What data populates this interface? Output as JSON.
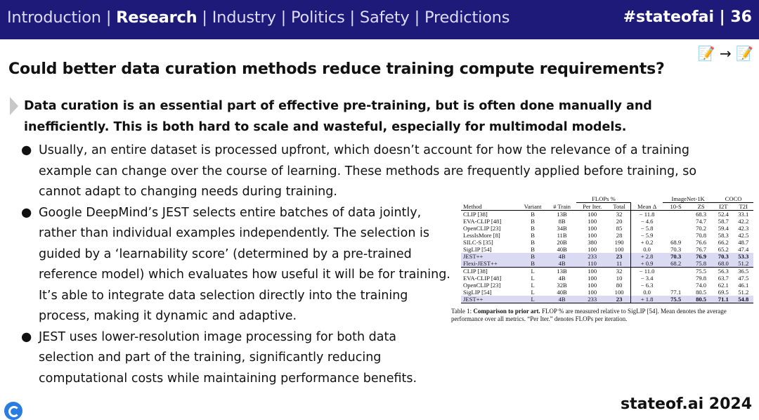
{
  "nav": {
    "items": [
      "Introduction",
      "Research",
      "Industry",
      "Politics",
      "Safety",
      "Predictions"
    ],
    "active": "Research",
    "separator": "|"
  },
  "badge": "#stateofai | 36",
  "emoji": "📝 → 📝",
  "title": "Could better data curation methods reduce training compute requirements?",
  "lead": "Data curation is an essential part of effective pre-training, but is often done manually and inefficiently. This is both hard to scale and wasteful, especially for multimodal models.",
  "bullets": [
    "Usually, an entire dataset is processed upfront, which doesn’t account for how the relevance of a training example can change over the course of learning. These methods are frequently applied before training, so cannot adapt to changing needs during training.",
    "Google DeepMind’s JEST selects entire batches of data jointly, rather than individual examples independently. The selection is guided by a ‘learnability score’ (determined by a pre-trained reference model) which evaluates how useful it will be for training. It’s able to integrate data selection directly into the training process, making it dynamic and adaptive.",
    "JEST uses lower-resolution image processing for both data selection and part of the training, significantly reducing computational costs while maintaining performance benefits."
  ],
  "table": {
    "group_headers": {
      "flops": "FLOPs %",
      "imagenet": "ImageNet-1K",
      "coco": "COCO"
    },
    "columns": [
      "Method",
      "Variant",
      "# Train",
      "Per Iter.",
      "Total",
      "Mean Δ",
      "10-S",
      "ZS",
      "I2T",
      "T2I"
    ],
    "rows_b": [
      [
        "CLIP [38]",
        "B",
        "13B",
        "100",
        "32",
        "− 11.8",
        "",
        "68.3",
        "52.4",
        "33.1"
      ],
      [
        "EVA-CLIP [48]",
        "B",
        "8B",
        "100",
        "20",
        "− 4.6",
        "",
        "74.7",
        "58.7",
        "42.2"
      ],
      [
        "OpenCLIP [23]",
        "B",
        "34B",
        "100",
        "85",
        "− 5.8",
        "",
        "70.2",
        "59.4",
        "42.3"
      ],
      [
        "LessIsMore [8]",
        "B",
        "11B",
        "100",
        "28",
        "− 5.9",
        "",
        "70.8",
        "58.3",
        "42.5"
      ],
      [
        "SILC-S [35]",
        "B",
        "20B",
        "380",
        "190",
        "+ 0.2",
        "68.9",
        "76.6",
        "66.2",
        "48.7"
      ],
      [
        "SigLIP [54]",
        "B",
        "40B",
        "100",
        "100",
        "0.0",
        "70.3",
        "76.7",
        "65.2",
        "47.4"
      ],
      [
        "JEST++",
        "B",
        "4B",
        "233",
        "23",
        "+ 2.8",
        "70.3",
        "76.9",
        "70.3",
        "53.3"
      ],
      [
        "Flexi-JEST++",
        "B",
        "4B",
        "110",
        "11",
        "+ 0.9",
        "68.2",
        "75.8",
        "68.0",
        "51.2"
      ]
    ],
    "rows_l": [
      [
        "CLIP [38]",
        "L",
        "13B",
        "100",
        "32",
        "− 11.0",
        "",
        "75.5",
        "56.3",
        "36.5"
      ],
      [
        "EVA-CLIP [48]",
        "L",
        "4B",
        "100",
        "10",
        "− 3.4",
        "",
        "79.8",
        "63.7",
        "47.5"
      ],
      [
        "OpenCLIP [23]",
        "L",
        "32B",
        "100",
        "80",
        "− 6.3",
        "",
        "74.0",
        "62.1",
        "46.1"
      ],
      [
        "SigLIP [54]",
        "L",
        "40B",
        "100",
        "100",
        "0.0",
        "77.1",
        "80.5",
        "69.5",
        "51.2"
      ],
      [
        "JEST++",
        "L",
        "4B",
        "233",
        "23",
        "+ 1.8",
        "75.5",
        "80.5",
        "71.1",
        "54.8"
      ]
    ],
    "caption_label": "Table 1:",
    "caption_bold": "Comparison to prior art.",
    "caption_text": "FLOP % are measured relative to SigLIP [54]. Mean denotes the average performance over all metrics. “Per Iter.” denotes FLOPs per iteration."
  },
  "footer": "stateof.ai 2024",
  "colors": {
    "topbar": "#1e1a7a",
    "highlight": "#dadaf3",
    "logo": "#2a7de0"
  }
}
